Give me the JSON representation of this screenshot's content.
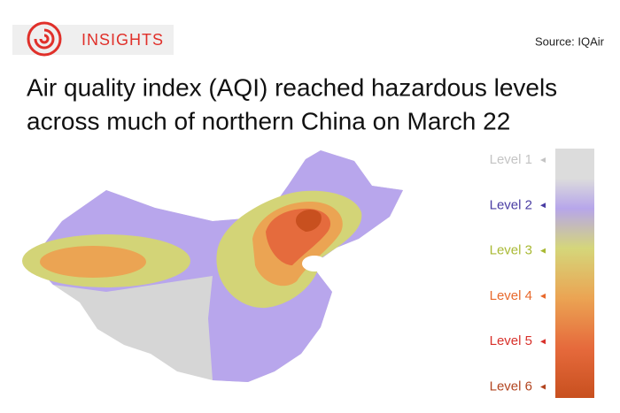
{
  "header": {
    "badge": "INSIGHTS",
    "source": "Source: IQAir"
  },
  "title_lines": [
    "Air quality index (AQI) reached hazardous levels",
    "across much of northern China on March 22"
  ],
  "legend": [
    {
      "label": "Level 1",
      "color": "#c4c4c4"
    },
    {
      "label": "Level 2",
      "color": "#4a3da3"
    },
    {
      "label": "Level 3",
      "color": "#a9b934"
    },
    {
      "label": "Level 4",
      "color": "#e8692c"
    },
    {
      "label": "Level 5",
      "color": "#d8312b"
    },
    {
      "label": "Level 6",
      "color": "#b2441f"
    }
  ]
}
